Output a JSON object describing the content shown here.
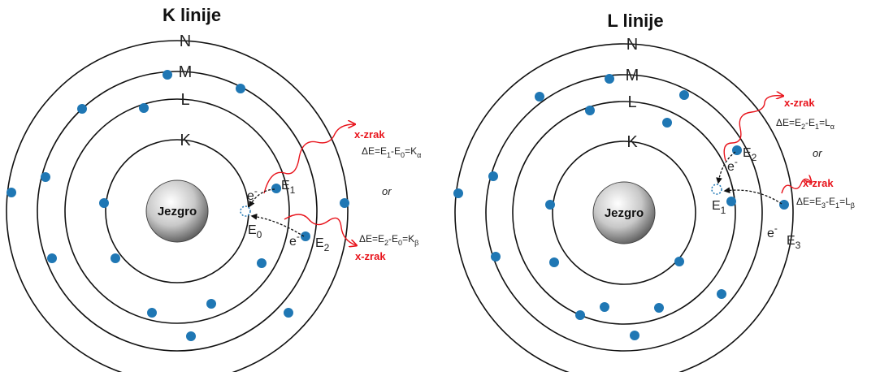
{
  "atoms": [
    {
      "title": "K linije",
      "shells": [
        "N",
        "M",
        "L",
        "K"
      ],
      "nucleus": "Jezgro",
      "photons": [
        "x-zrak",
        "x-zrak"
      ],
      "equations": [
        [
          "ΔE=E",
          "1",
          "-E",
          "0",
          "=K",
          "α"
        ],
        [
          "ΔE=E",
          "2",
          "-E",
          "0",
          "=K",
          "β"
        ]
      ],
      "or": "or",
      "energy_labels": [
        [
          "E",
          "1"
        ],
        [
          "E",
          "0"
        ],
        [
          "E",
          "2"
        ]
      ],
      "electron_labels": [
        [
          "e",
          "-"
        ],
        [
          "e",
          "-"
        ]
      ]
    },
    {
      "title": "L linije",
      "shells": [
        "N",
        "M",
        "L",
        "K"
      ],
      "nucleus": "Jezgro",
      "photons": [
        "x-zrak",
        "x-zrak"
      ],
      "equations": [
        [
          "ΔE=E",
          "2",
          "-E",
          "1",
          "=L",
          "α"
        ],
        [
          "ΔE=E",
          "3",
          "-E",
          "1",
          "=L",
          "β"
        ]
      ],
      "or": "or",
      "energy_labels": [
        [
          "E",
          "2"
        ],
        [
          "E",
          "1"
        ],
        [
          "E",
          "3"
        ]
      ],
      "electron_labels": [
        [
          "e",
          "-"
        ],
        [
          "e",
          "-"
        ]
      ]
    }
  ]
}
